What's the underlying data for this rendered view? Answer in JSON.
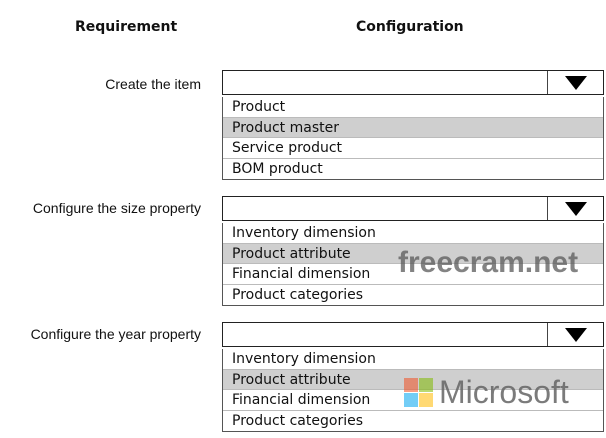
{
  "headers": {
    "requirement": "Requirement",
    "configuration": "Configuration"
  },
  "rows": [
    {
      "label": "Create the item",
      "options": [
        "Product",
        "Product master",
        "Service product",
        "BOM product"
      ],
      "highlighted": 1
    },
    {
      "label": "Configure the size property",
      "options": [
        "Inventory dimension",
        "Product attribute",
        "Financial dimension",
        "Product categories"
      ],
      "highlighted": 1
    },
    {
      "label": "Configure the year property",
      "options": [
        "Inventory dimension",
        "Product attribute",
        "Financial dimension",
        "Product categories"
      ],
      "highlighted": 1
    }
  ],
  "watermarks": {
    "site": "freecram.net",
    "brand": "Microsoft"
  },
  "colors": {
    "highlight": "#cfcfcf",
    "ms_red": "#f25022",
    "ms_green": "#7fba00",
    "ms_blue": "#00a4ef",
    "ms_yellow": "#ffb900"
  }
}
